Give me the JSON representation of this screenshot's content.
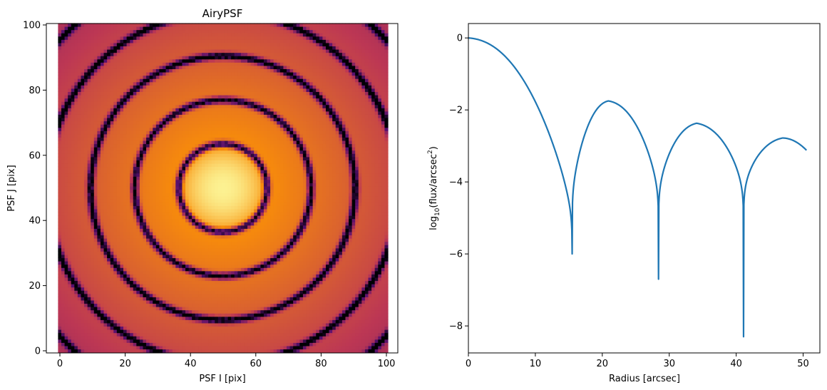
{
  "chart_data": [
    {
      "type": "heatmap",
      "title": "AiryPSF",
      "xlabel": "PSF I [pix]",
      "ylabel": "PSF J [pix]",
      "grid_size": 101,
      "center": [
        50,
        50
      ],
      "ring_spacing": 13.5,
      "dark_ring_radii": [
        13.5,
        27,
        40.5,
        54,
        67.5
      ],
      "xlim": [
        0,
        100
      ],
      "ylim": [
        0,
        100
      ],
      "xticks": [
        0,
        20,
        40,
        60,
        80,
        100
      ],
      "yticks": [
        0,
        20,
        40,
        60,
        80,
        100
      ],
      "colormap": "inferno",
      "grid": false
    },
    {
      "type": "line",
      "title": "",
      "xlabel": "Radius [arcsec]",
      "ylabel_main": "log",
      "ylabel_sub": "10",
      "ylabel_mid": "(flux/arcsec",
      "ylabel_sup": "2",
      "ylabel_end": ")",
      "xlim": [
        0,
        52.5
      ],
      "ylim": [
        -8.75,
        0.4
      ],
      "xticks": [
        0,
        10,
        20,
        30,
        40,
        50
      ],
      "yticks": [
        0,
        -2,
        -4,
        -6,
        -8
      ],
      "series": [
        {
          "color": "#1f77b4",
          "x_range": [
            0,
            50.5
          ],
          "zeros": [
            15.5,
            28.4,
            41.1
          ],
          "zero_depths": [
            -6.0,
            -6.7,
            -8.3
          ],
          "peaks": [
            {
              "x": 0,
              "y": 0
            },
            {
              "x": 20.9,
              "y": -1.75
            },
            {
              "x": 34.1,
              "y": -2.37
            },
            {
              "x": 46.9,
              "y": -2.78
            }
          ],
          "end_value": -3.12
        }
      ],
      "grid": false
    }
  ]
}
